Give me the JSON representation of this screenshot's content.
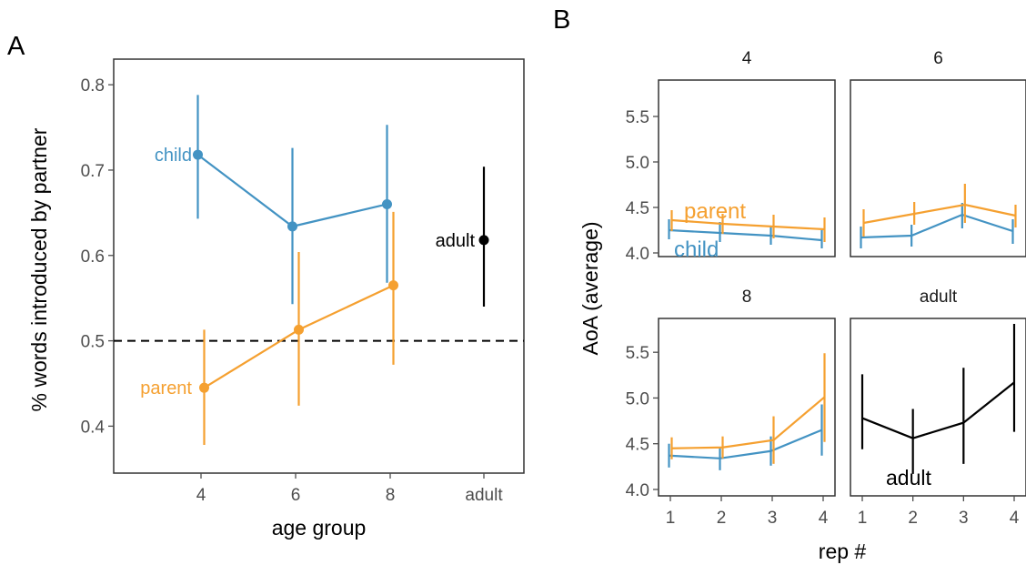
{
  "panel_labels": {
    "a": "A",
    "b": "B"
  },
  "colors": {
    "child": "#4393C3",
    "parent": "#F5A030",
    "adult": "#000000",
    "frame": "#333333",
    "tick": "#4d4d4d"
  },
  "chart_data": [
    {
      "panel": "A",
      "type": "scatter",
      "xlabel": "age group",
      "ylabel": "% words introduced by partner",
      "x_categories": [
        "4",
        "6",
        "8",
        "adult"
      ],
      "yticks": [
        0.4,
        0.5,
        0.6,
        0.7,
        0.8
      ],
      "ylim": [
        0.345,
        0.83
      ],
      "reference_line": {
        "y": 0.5,
        "style": "dashed"
      },
      "grid": false,
      "series": [
        {
          "name": "child",
          "color": "#4393C3",
          "points": [
            {
              "x": "4",
              "y": 0.718,
              "lo": 0.643,
              "hi": 0.788
            },
            {
              "x": "6",
              "y": 0.634,
              "lo": 0.543,
              "hi": 0.726
            },
            {
              "x": "8",
              "y": 0.66,
              "lo": 0.568,
              "hi": 0.753
            }
          ]
        },
        {
          "name": "parent",
          "color": "#F5A030",
          "points": [
            {
              "x": "4",
              "y": 0.445,
              "lo": 0.378,
              "hi": 0.513
            },
            {
              "x": "6",
              "y": 0.513,
              "lo": 0.424,
              "hi": 0.604
            },
            {
              "x": "8",
              "y": 0.565,
              "lo": 0.472,
              "hi": 0.651
            }
          ]
        },
        {
          "name": "adult",
          "color": "#000000",
          "points": [
            {
              "x": "adult",
              "y": 0.618,
              "lo": 0.54,
              "hi": 0.704
            }
          ]
        }
      ]
    },
    {
      "panel": "B",
      "type": "line",
      "xlabel": "rep #",
      "ylabel": "AoA (average)",
      "x_ticks": [
        1,
        2,
        3,
        4
      ],
      "top_row": {
        "ylim": [
          3.96,
          5.9
        ],
        "yticks": [
          4.0,
          4.5,
          5.0,
          5.5
        ]
      },
      "bottom_row": {
        "ylim": [
          3.93,
          5.87
        ],
        "yticks": [
          4.0,
          4.5,
          5.0,
          5.5
        ]
      },
      "facets": [
        {
          "title": "4",
          "series": [
            {
              "name": "child",
              "color": "#4393C3",
              "y": [
                4.25,
                4.22,
                4.19,
                4.14
              ],
              "lo": [
                4.15,
                4.12,
                4.09,
                4.05
              ],
              "hi": [
                4.37,
                4.34,
                4.3,
                4.25
              ]
            },
            {
              "name": "parent",
              "color": "#F5A030",
              "y": [
                4.36,
                4.32,
                4.29,
                4.26
              ],
              "lo": [
                4.24,
                4.21,
                4.16,
                4.12
              ],
              "hi": [
                4.47,
                4.43,
                4.42,
                4.39
              ]
            }
          ],
          "labels": [
            {
              "text": "parent",
              "series": "parent"
            },
            {
              "text": "child",
              "series": "child"
            }
          ]
        },
        {
          "title": "6",
          "series": [
            {
              "name": "child",
              "color": "#4393C3",
              "y": [
                4.17,
                4.19,
                4.42,
                4.24
              ],
              "lo": [
                4.05,
                4.07,
                4.27,
                4.1
              ],
              "hi": [
                4.29,
                4.31,
                4.55,
                4.37
              ]
            },
            {
              "name": "parent",
              "color": "#F5A030",
              "y": [
                4.33,
                4.43,
                4.53,
                4.41
              ],
              "lo": [
                4.18,
                4.31,
                4.33,
                4.28
              ],
              "hi": [
                4.48,
                4.56,
                4.76,
                4.53
              ]
            }
          ],
          "labels": []
        },
        {
          "title": "8",
          "series": [
            {
              "name": "child",
              "color": "#4393C3",
              "y": [
                4.37,
                4.34,
                4.42,
                4.65
              ],
              "lo": [
                4.24,
                4.21,
                4.26,
                4.37
              ],
              "hi": [
                4.5,
                4.46,
                4.58,
                4.93
              ]
            },
            {
              "name": "parent",
              "color": "#F5A030",
              "y": [
                4.45,
                4.46,
                4.54,
                5.01
              ],
              "lo": [
                4.33,
                4.34,
                4.28,
                4.52
              ],
              "hi": [
                4.57,
                4.58,
                4.8,
                5.49
              ]
            }
          ],
          "labels": []
        },
        {
          "title": "adult",
          "series": [
            {
              "name": "adult",
              "color": "#000000",
              "y": [
                4.78,
                4.56,
                4.73,
                5.17
              ],
              "lo": [
                4.44,
                4.17,
                4.28,
                4.63
              ],
              "hi": [
                5.26,
                4.88,
                5.33,
                5.81
              ]
            }
          ],
          "labels": [
            {
              "text": "adult",
              "series": "adult"
            }
          ]
        }
      ]
    }
  ]
}
